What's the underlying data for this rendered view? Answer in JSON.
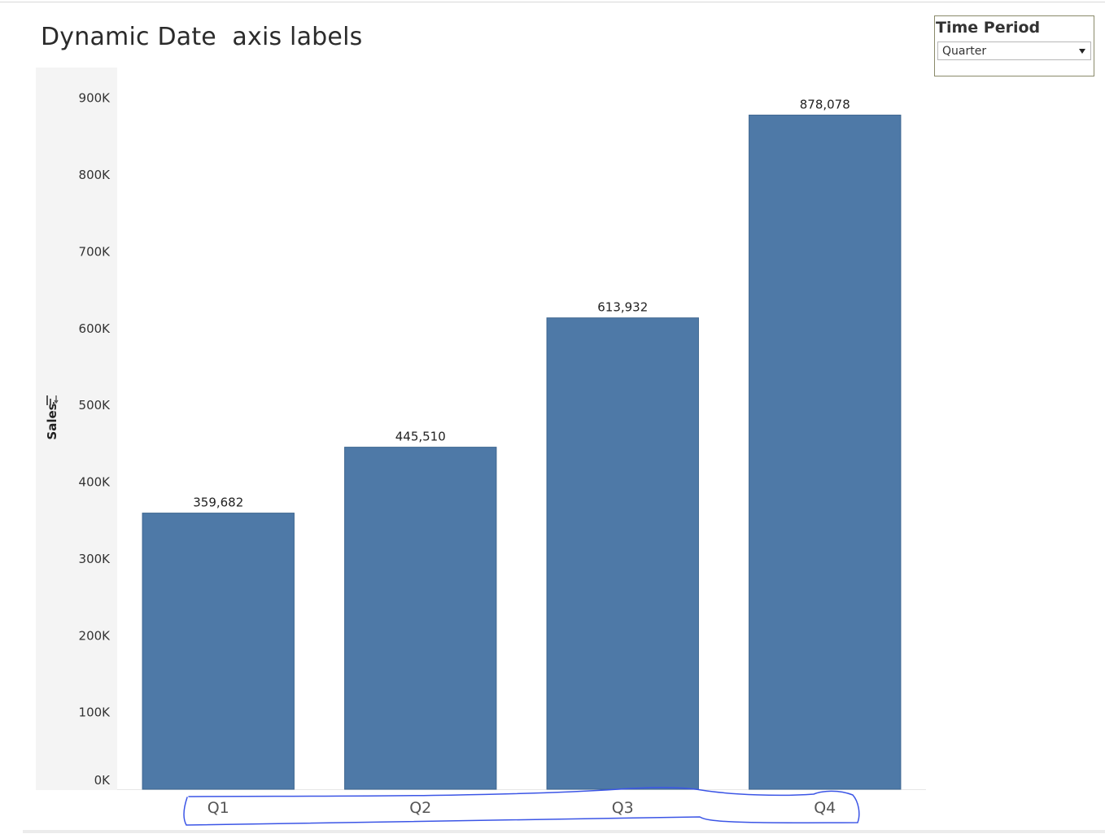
{
  "chart_data": {
    "type": "bar",
    "title": "Dynamic Date  axis labels",
    "ylabel": "Sales",
    "xlabel": "",
    "categories": [
      "Q1",
      "Q2",
      "Q3",
      "Q4"
    ],
    "values": [
      359682,
      445510,
      613932,
      878078
    ],
    "value_labels": [
      "359,682",
      "445,510",
      "613,932",
      "878,078"
    ],
    "y_ticks": [
      0,
      100000,
      200000,
      300000,
      400000,
      500000,
      600000,
      700000,
      800000,
      900000
    ],
    "y_tick_labels": [
      "0K",
      "100K",
      "200K",
      "300K",
      "400K",
      "500K",
      "600K",
      "700K",
      "800K",
      "900K"
    ],
    "ylim": [
      0,
      940000
    ],
    "grid": false,
    "bar_color": "#4e79a7",
    "annotation_color": "#3b55e6"
  },
  "filter": {
    "title": "Time Period",
    "selected": "Quarter"
  }
}
